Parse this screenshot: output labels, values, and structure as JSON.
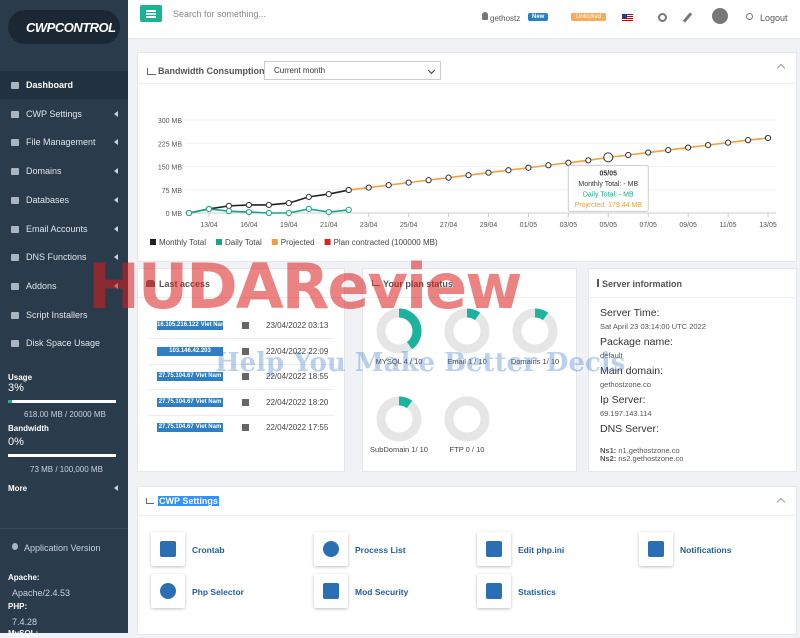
{
  "logo": "CWPCONTROL",
  "sidebar": {
    "menu": [
      "Dashboard",
      "CWP Settings",
      "File Management",
      "Domains",
      "Databases",
      "Email Accounts",
      "DNS Functions",
      "Addons",
      "Script Installers",
      "Disk Space Usage"
    ],
    "usage_title": "Usage",
    "usage_percent": "3%",
    "usage_detail": "618.00 MB / 20000 MB",
    "bandwidth_title": "Bandwidth",
    "bandwidth_percent": "0%",
    "bandwidth_detail": "73 MB / 100,000 MB",
    "more": "More",
    "app_version": "Application Version",
    "apache_label": "Apache:",
    "apache_value": "Apache/2.4.53",
    "php_label": "PHP:",
    "php_value": "7.4.28",
    "mysql_label": "MySQL:"
  },
  "topbar": {
    "search_placeholder": "Search for something...",
    "user": "gethostz",
    "new_badge": "New",
    "unlocked": "Unlocked",
    "logout": "Logout"
  },
  "bandwidth_panel": {
    "title": "Bandwidth Consumption",
    "select": "Current month"
  },
  "chart_data": {
    "type": "line",
    "categories": [
      null,
      "13/04",
      null,
      "16/04",
      null,
      "19/04",
      null,
      "21/04",
      null,
      "23/04",
      null,
      "25/04",
      null,
      "27/04",
      null,
      "29/04",
      null,
      "01/05",
      null,
      "03/05",
      null,
      "05/05",
      null,
      "07/05",
      null,
      "09/05",
      null,
      "11/05",
      null,
      "13/05"
    ],
    "series": [
      {
        "name": "Monthly Total",
        "color": "#222222",
        "values": [
          0,
          13,
          23,
          26,
          26,
          32,
          52,
          61,
          74,
          null,
          null,
          null,
          null,
          null,
          null,
          null,
          null,
          null,
          null,
          null,
          null,
          null,
          null,
          null,
          null,
          null,
          null,
          null,
          null,
          null
        ]
      },
      {
        "name": "Daily Total",
        "color": "#1aa58a",
        "values": [
          0,
          13,
          6,
          3,
          0,
          0,
          13,
          3,
          10,
          null,
          null,
          null,
          null,
          null,
          null,
          null,
          null,
          null,
          null,
          null,
          null,
          null,
          null,
          null,
          null,
          null,
          null,
          null,
          null,
          null
        ]
      },
      {
        "name": "Projected",
        "color": "#f0a040",
        "values": [
          null,
          null,
          null,
          null,
          null,
          null,
          null,
          null,
          74,
          82,
          90,
          98,
          106,
          114,
          122,
          130,
          138,
          146,
          154,
          162,
          170,
          179.44,
          187,
          195,
          203,
          211,
          219,
          227,
          235,
          242
        ]
      },
      {
        "name": "Plan contracted (100000 MB)",
        "color": "#e02020",
        "values": [
          null,
          null,
          null,
          null,
          null,
          null,
          null,
          null,
          null,
          null,
          null,
          null,
          null,
          null,
          null,
          null,
          null,
          null,
          null,
          null,
          null,
          null,
          null,
          null,
          null,
          null,
          null,
          null,
          null,
          null
        ]
      }
    ],
    "ylim": [
      0,
      300
    ],
    "yticks": [
      {
        "value": 0,
        "label": "0 MB"
      },
      {
        "value": 75,
        "label": "75 MB"
      },
      {
        "value": 150,
        "label": "150 MB"
      },
      {
        "value": 225,
        "label": "225 MB"
      },
      {
        "value": 300,
        "label": "300 MB"
      }
    ],
    "grid": true,
    "tooltip": {
      "title": "05/05",
      "monthly": "Monthly Total: - MB",
      "daily": "Daily Total: - MB",
      "projected": "Projected: 179.44 MB"
    }
  },
  "last_access": {
    "title": "Last access",
    "rows": [
      {
        "ip": "16.105.216.122",
        "country": "Viet Nam",
        "date": "23/04/2022 03:13"
      },
      {
        "ip": "103.146.42.203",
        "country": "",
        "date": "22/04/2022 22:09"
      },
      {
        "ip": "27.75.104.67",
        "country": "Viet Nam",
        "date": "22/04/2022 18:55"
      },
      {
        "ip": "27.75.104.67",
        "country": "Viet Nam",
        "date": "22/04/2022 18:20"
      },
      {
        "ip": "27.75.104.67",
        "country": "Viet Nam",
        "date": "22/04/2022 17:55"
      }
    ]
  },
  "plan_status": {
    "title": "Your plan status",
    "items": [
      {
        "label": "MYSQL 4 / 10",
        "used": 4,
        "total": 10
      },
      {
        "label": "Email 1 / 10",
        "used": 1,
        "total": 10
      },
      {
        "label": "Domains 1/ 10",
        "used": 1,
        "total": 10
      },
      {
        "label": "SubDomain 1/ 10",
        "used": 1,
        "total": 10
      },
      {
        "label": "FTP 0 / 10",
        "used": 0,
        "total": 10
      }
    ]
  },
  "server_info": {
    "title": "Server information",
    "items": [
      {
        "label": "Server Time:",
        "value": "Sat April 23 03:14:00 UTC 2022"
      },
      {
        "label": "Package name:",
        "value": "default"
      },
      {
        "label": "Main domain:",
        "value": "gethostzone.co"
      },
      {
        "label": "Ip Server:",
        "value": "69.197.143.114"
      },
      {
        "label": "DNS Server:",
        "value": ""
      }
    ],
    "ns1_label": "Ns1:",
    "ns1_value": "n1.gethostzone.co",
    "ns2_label": "Ns2:",
    "ns2_value": "ns2.gethostzone.co"
  },
  "cwp_settings": {
    "title": "CWP Settings",
    "items": [
      "Crontab",
      "Process List",
      "Edit php.ini",
      "Notifications",
      "Php Selector",
      "Mod Security",
      "Statistics"
    ]
  },
  "watermark": {
    "brand": "HUDAReview",
    "tagline": "Help You Make Better Decis"
  }
}
